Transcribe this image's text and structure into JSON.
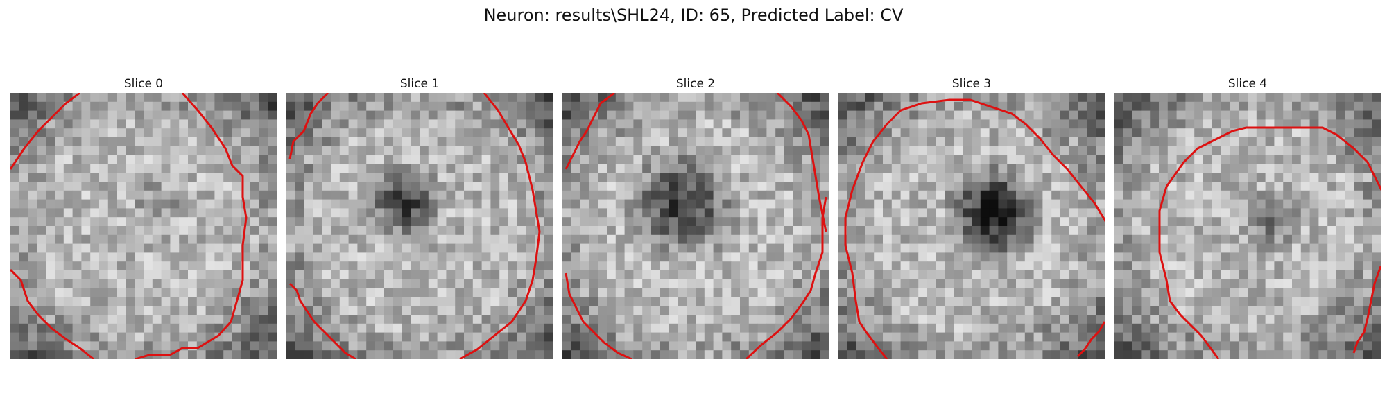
{
  "figure": {
    "title": "Neuron: results\\SHL24, ID: 65, Predicted Label: CV",
    "contour_color": "#dd1111"
  },
  "panels": [
    {
      "title": "Slice 0"
    },
    {
      "title": "Slice 1"
    },
    {
      "title": "Slice 2"
    },
    {
      "title": "Slice 3"
    },
    {
      "title": "Slice 4"
    }
  ]
}
